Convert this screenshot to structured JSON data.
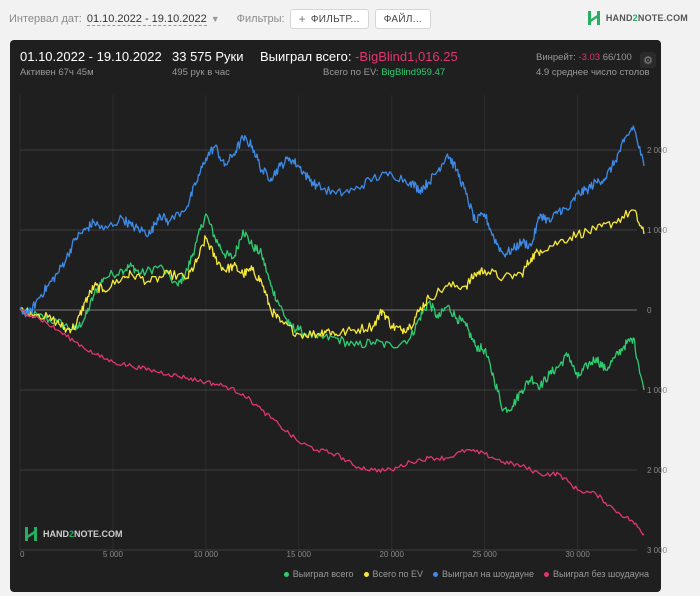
{
  "toolbar": {
    "date_interval_label": "Интервал дат:",
    "date_range": "01.10.2022 - 19.10.2022",
    "filters_label": "Фильтры:",
    "filter_button": "ФИЛЬТР...",
    "file_button": "ФАЙЛ...",
    "logo_hand": "HAND",
    "logo_two": "2",
    "logo_note": "NOTE.COM"
  },
  "header": {
    "period": "01.10.2022 - 19.10.2022",
    "active": "Активен 67ч 45м",
    "hands": "33 575 Руки",
    "hands_per_hour": "495 рук в час",
    "won_total_label": "Выиграл всего:",
    "won_total_value": "-BigBlind1,016.25",
    "ev_total_label": "Всего по EV:",
    "ev_total_value": "BigBlind959.47",
    "winrate_label": "Винрейт:",
    "winrate_value": "-3.03",
    "winrate_rest": "66/100",
    "tables": "4.9 среднее число столов"
  },
  "watermark": {
    "hand": "HAND",
    "two": "2",
    "note": "NOTE.COM"
  },
  "colors": {
    "won_total": "#2ecc71",
    "ev": "#f5e93a",
    "showdown": "#3d8be8",
    "non_showdown": "#e0366e",
    "background": "#1f1f1f"
  },
  "chart_data": {
    "type": "line",
    "xlim": [
      0,
      33575
    ],
    "ylim": [
      -3000,
      2500
    ],
    "x_ticks": [
      {
        "value": 0,
        "label": "0"
      },
      {
        "value": 5000,
        "label": "5 000"
      },
      {
        "value": 10000,
        "label": "10 000"
      },
      {
        "value": 15000,
        "label": "15 000"
      },
      {
        "value": 20000,
        "label": "20 000"
      },
      {
        "value": 25000,
        "label": "25 000"
      },
      {
        "value": 30000,
        "label": "30 000"
      }
    ],
    "y_ticks": [
      {
        "value": 2000,
        "label": "2 000"
      },
      {
        "value": 1000,
        "label": "1 000"
      },
      {
        "value": 0,
        "label": "0"
      },
      {
        "value": -1000,
        "label": "1 000"
      },
      {
        "value": -2000,
        "label": "2 000"
      },
      {
        "value": -3000,
        "label": "3 000"
      }
    ],
    "legend_position": "bottom-right",
    "series": [
      {
        "name": "Выиграл всего",
        "color": "#2ecc71",
        "points": [
          [
            0,
            0
          ],
          [
            1000,
            -80
          ],
          [
            2000,
            -150
          ],
          [
            3000,
            -250
          ],
          [
            3500,
            -100
          ],
          [
            4000,
            200
          ],
          [
            4500,
            400
          ],
          [
            5500,
            500
          ],
          [
            6000,
            550
          ],
          [
            6500,
            450
          ],
          [
            7500,
            550
          ],
          [
            8500,
            300
          ],
          [
            9000,
            500
          ],
          [
            9500,
            850
          ],
          [
            10000,
            1200
          ],
          [
            10500,
            900
          ],
          [
            11000,
            700
          ],
          [
            11500,
            650
          ],
          [
            12000,
            1000
          ],
          [
            12500,
            800
          ],
          [
            13000,
            700
          ],
          [
            13500,
            300
          ],
          [
            14000,
            50
          ],
          [
            14500,
            -200
          ],
          [
            15000,
            -250
          ],
          [
            16000,
            -350
          ],
          [
            17000,
            -350
          ],
          [
            18000,
            -450
          ],
          [
            19000,
            -400
          ],
          [
            20000,
            -450
          ],
          [
            21000,
            -350
          ],
          [
            21500,
            -100
          ],
          [
            22000,
            100
          ],
          [
            22500,
            -100
          ],
          [
            23000,
            50
          ],
          [
            23500,
            -100
          ],
          [
            24000,
            -200
          ],
          [
            24500,
            -450
          ],
          [
            25000,
            -500
          ],
          [
            25500,
            -850
          ],
          [
            26000,
            -1250
          ],
          [
            26500,
            -1200
          ],
          [
            27000,
            -1000
          ],
          [
            27500,
            -850
          ],
          [
            28000,
            -950
          ],
          [
            28500,
            -800
          ],
          [
            29000,
            -700
          ],
          [
            29500,
            -550
          ],
          [
            30000,
            -850
          ],
          [
            30500,
            -700
          ],
          [
            31000,
            -600
          ],
          [
            31500,
            -750
          ],
          [
            32000,
            -600
          ],
          [
            32500,
            -450
          ],
          [
            33000,
            -350
          ],
          [
            33575,
            -1000
          ]
        ]
      },
      {
        "name": "Всего по EV",
        "color": "#f5e93a",
        "points": [
          [
            0,
            0
          ],
          [
            1000,
            -50
          ],
          [
            2000,
            -150
          ],
          [
            2500,
            -250
          ],
          [
            3000,
            -200
          ],
          [
            3500,
            100
          ],
          [
            4000,
            300
          ],
          [
            4500,
            250
          ],
          [
            5500,
            400
          ],
          [
            6000,
            450
          ],
          [
            7000,
            350
          ],
          [
            8000,
            450
          ],
          [
            9000,
            400
          ],
          [
            9500,
            600
          ],
          [
            10000,
            900
          ],
          [
            10500,
            650
          ],
          [
            11000,
            500
          ],
          [
            11500,
            550
          ],
          [
            12000,
            450
          ],
          [
            12500,
            500
          ],
          [
            13000,
            350
          ],
          [
            13500,
            0
          ],
          [
            14000,
            -150
          ],
          [
            15000,
            -300
          ],
          [
            16000,
            -300
          ],
          [
            16500,
            -250
          ],
          [
            17000,
            -300
          ],
          [
            18000,
            -250
          ],
          [
            19000,
            -200
          ],
          [
            19500,
            0
          ],
          [
            20000,
            -200
          ],
          [
            20500,
            -250
          ],
          [
            21000,
            -200
          ],
          [
            21500,
            0
          ],
          [
            22000,
            150
          ],
          [
            23000,
            300
          ],
          [
            24000,
            300
          ],
          [
            24500,
            450
          ],
          [
            25000,
            500
          ],
          [
            26000,
            400
          ],
          [
            27000,
            450
          ],
          [
            27500,
            650
          ],
          [
            28000,
            750
          ],
          [
            29000,
            850
          ],
          [
            30000,
            950
          ],
          [
            31000,
            1000
          ],
          [
            32000,
            1100
          ],
          [
            33000,
            1250
          ],
          [
            33575,
            950
          ]
        ]
      },
      {
        "name": "Выиграл на шоудауне",
        "color": "#3d8be8",
        "points": [
          [
            0,
            0
          ],
          [
            500,
            -50
          ],
          [
            1000,
            150
          ],
          [
            1500,
            300
          ],
          [
            2000,
            450
          ],
          [
            2500,
            650
          ],
          [
            3000,
            900
          ],
          [
            3500,
            1000
          ],
          [
            4000,
            1100
          ],
          [
            4500,
            1000
          ],
          [
            5500,
            1150
          ],
          [
            6000,
            1050
          ],
          [
            6500,
            1000
          ],
          [
            7000,
            950
          ],
          [
            7500,
            1200
          ],
          [
            8000,
            1100
          ],
          [
            9000,
            1300
          ],
          [
            9500,
            1600
          ],
          [
            10000,
            1900
          ],
          [
            10500,
            2050
          ],
          [
            11000,
            1800
          ],
          [
            11500,
            1950
          ],
          [
            12000,
            2150
          ],
          [
            12500,
            2050
          ],
          [
            13000,
            1750
          ],
          [
            13500,
            1650
          ],
          [
            14000,
            1800
          ],
          [
            14500,
            1900
          ],
          [
            15000,
            1800
          ],
          [
            15500,
            1650
          ],
          [
            16000,
            1550
          ],
          [
            17000,
            1450
          ],
          [
            18000,
            1500
          ],
          [
            19000,
            1650
          ],
          [
            20000,
            1700
          ],
          [
            21000,
            1600
          ],
          [
            21500,
            1500
          ],
          [
            22000,
            1600
          ],
          [
            22500,
            1750
          ],
          [
            23000,
            1950
          ],
          [
            23500,
            1750
          ],
          [
            24000,
            1450
          ],
          [
            24500,
            1100
          ],
          [
            25000,
            1200
          ],
          [
            25500,
            900
          ],
          [
            26000,
            700
          ],
          [
            26500,
            750
          ],
          [
            27000,
            850
          ],
          [
            27500,
            800
          ],
          [
            28000,
            1200
          ],
          [
            28500,
            1100
          ],
          [
            29000,
            1250
          ],
          [
            29500,
            1250
          ],
          [
            30000,
            1450
          ],
          [
            30500,
            1500
          ],
          [
            31000,
            1600
          ],
          [
            31500,
            1650
          ],
          [
            32000,
            1850
          ],
          [
            32500,
            2100
          ],
          [
            33000,
            2300
          ],
          [
            33575,
            1800
          ]
        ]
      },
      {
        "name": "Выиграл без шоудауна",
        "color": "#e0366e",
        "points": [
          [
            0,
            0
          ],
          [
            1000,
            -100
          ],
          [
            2000,
            -250
          ],
          [
            3000,
            -400
          ],
          [
            4000,
            -550
          ],
          [
            5000,
            -650
          ],
          [
            6000,
            -700
          ],
          [
            7000,
            -750
          ],
          [
            8000,
            -800
          ],
          [
            9000,
            -850
          ],
          [
            10000,
            -900
          ],
          [
            11000,
            -950
          ],
          [
            12000,
            -1050
          ],
          [
            13000,
            -1250
          ],
          [
            14000,
            -1450
          ],
          [
            15000,
            -1650
          ],
          [
            16000,
            -1750
          ],
          [
            17000,
            -1800
          ],
          [
            18000,
            -1950
          ],
          [
            19000,
            -2000
          ],
          [
            20000,
            -2000
          ],
          [
            21000,
            -1900
          ],
          [
            22000,
            -1850
          ],
          [
            23000,
            -1850
          ],
          [
            24000,
            -1750
          ],
          [
            25000,
            -1800
          ],
          [
            26000,
            -1900
          ],
          [
            27000,
            -1950
          ],
          [
            28000,
            -2050
          ],
          [
            29000,
            -2050
          ],
          [
            30000,
            -2250
          ],
          [
            31000,
            -2300
          ],
          [
            32000,
            -2500
          ],
          [
            33000,
            -2650
          ],
          [
            33575,
            -2800
          ]
        ]
      }
    ]
  }
}
